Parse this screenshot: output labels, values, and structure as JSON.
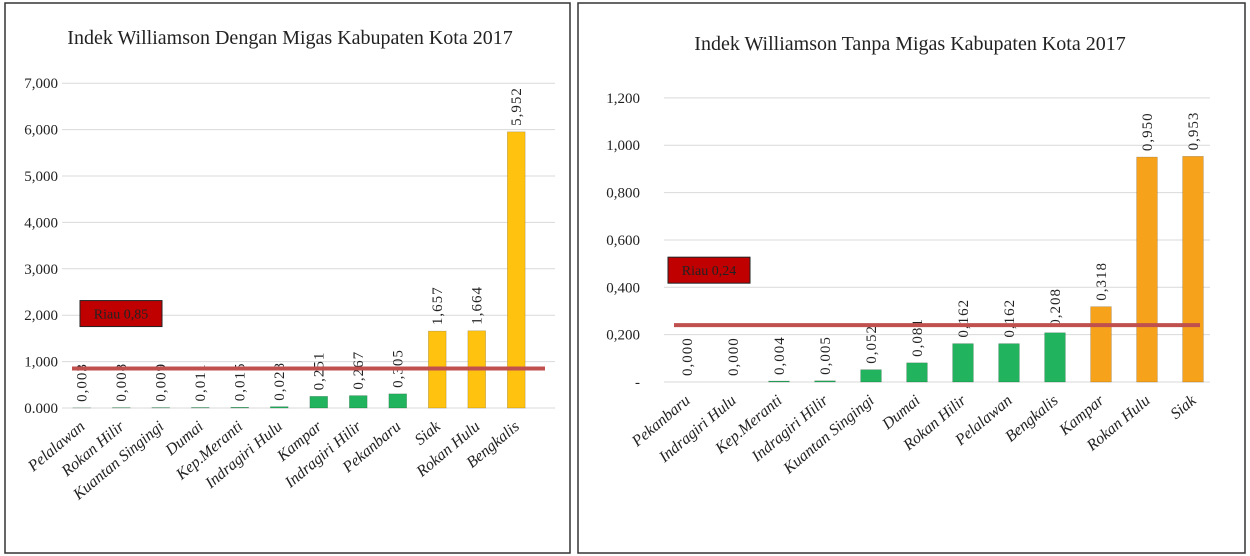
{
  "chart_data": [
    {
      "type": "bar",
      "title": "Indek Williamson Dengan Migas Kabupaten Kota 2017",
      "categories": [
        "Pelalawan",
        "Rokan Hilir",
        "Kuantan Singingi",
        "Dumai",
        "Kep.Meranti",
        "Indragiri Hulu",
        "Kampar",
        "Indragiri Hilir",
        "Pekanbaru",
        "Siak",
        "Rokan Hulu",
        "Bengkalis"
      ],
      "values": [
        0.003,
        0.008,
        0.009,
        0.011,
        0.015,
        0.028,
        0.251,
        0.267,
        0.305,
        1.657,
        1.664,
        5.952
      ],
      "value_labels": [
        "0,003",
        "0,008",
        "0,009",
        "0,011",
        "0,015",
        "0,028",
        "0,251",
        "0,267",
        "0,305",
        "1,657",
        "1,664",
        "5,952"
      ],
      "colors": [
        "#21b35e",
        "#21b35e",
        "#21b35e",
        "#21b35e",
        "#21b35e",
        "#21b35e",
        "#21b35e",
        "#21b35e",
        "#21b35e",
        "#ffc20e",
        "#ffc20e",
        "#ffc20e"
      ],
      "ylim": [
        0,
        7.5
      ],
      "yticks": [
        {
          "value": 0,
          "label": "0.000"
        },
        {
          "value": 1,
          "label": "1,000"
        },
        {
          "value": 2,
          "label": "2,000"
        },
        {
          "value": 3,
          "label": "3,000"
        },
        {
          "value": 4,
          "label": "4,000"
        },
        {
          "value": 5,
          "label": "5,000"
        },
        {
          "value": 6,
          "label": "6,000"
        },
        {
          "value": 7,
          "label": "7,000"
        }
      ],
      "grid": true,
      "reference_line": {
        "value": 0.85,
        "label": "Riau 0,85"
      }
    },
    {
      "type": "bar",
      "title": "Indek Williamson Tanpa Migas Kabupaten Kota 2017",
      "categories": [
        "Pekanbaru",
        "Indragiri Hulu",
        "Kep.Meranti",
        "Indragiri Hilir",
        "Kuantan Singingi",
        "Dumai",
        "Rokan Hilir",
        "Pelalawan",
        "Bengkalis",
        "Kampar",
        "Rokan Hulu",
        "Siak"
      ],
      "values": [
        0.0,
        0.0,
        0.004,
        0.005,
        0.052,
        0.081,
        0.162,
        0.162,
        0.208,
        0.318,
        0.95,
        0.953
      ],
      "value_labels": [
        "0,000",
        "0,000",
        "0,004",
        "0,005",
        "0,052",
        "0,081",
        "0,162",
        "0,162",
        "0,208",
        "0,318",
        "0,950",
        "0,953"
      ],
      "colors": [
        "#21b35e",
        "#21b35e",
        "#21b35e",
        "#21b35e",
        "#21b35e",
        "#21b35e",
        "#21b35e",
        "#21b35e",
        "#21b35e",
        "#f7a21b",
        "#f7a21b",
        "#f7a21b"
      ],
      "ylim": [
        0,
        1.36
      ],
      "yticks": [
        {
          "value": 0,
          "label": "-"
        },
        {
          "value": 0.2,
          "label": "0,200"
        },
        {
          "value": 0.4,
          "label": "0,400"
        },
        {
          "value": 0.6,
          "label": "0,600"
        },
        {
          "value": 0.8,
          "label": "0,800"
        },
        {
          "value": 1,
          "label": "1,000"
        },
        {
          "value": 1.2,
          "label": "1,200"
        }
      ],
      "grid": true,
      "reference_line": {
        "value": 0.24,
        "label": "Riau 0,24"
      }
    }
  ]
}
